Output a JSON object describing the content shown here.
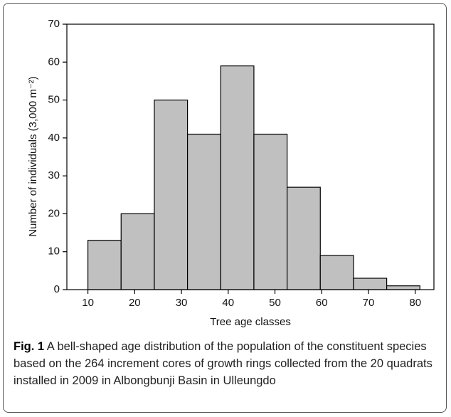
{
  "chart_data": {
    "type": "histogram",
    "y_label": "Number of individuals (3,000 m⁻²)",
    "x_label": "Tree age classes",
    "bins": [
      10,
      17.1,
      24.2,
      31.3,
      38.4,
      45.5,
      52.6,
      59.7,
      66.8,
      73.9,
      81
    ],
    "values": [
      13,
      20,
      50,
      41,
      59,
      41,
      27,
      9,
      3,
      1
    ],
    "color": "#c0c0c0",
    "xlim": [
      5.5,
      84
    ],
    "xticks": [
      10,
      20,
      30,
      40,
      50,
      60,
      70,
      80
    ],
    "ylim": [
      0,
      70
    ],
    "yticks": [
      0,
      10,
      20,
      30,
      40,
      50,
      60,
      70
    ],
    "grid": false
  },
  "caption": {
    "label": "Fig. 1",
    "text": "A bell-shaped age distribution of the population of the constituent species based on the 264 increment cores of growth rings collected from the 20 quadrats installed in 2009 in Albongbunji Basin in Ulleungdo"
  }
}
